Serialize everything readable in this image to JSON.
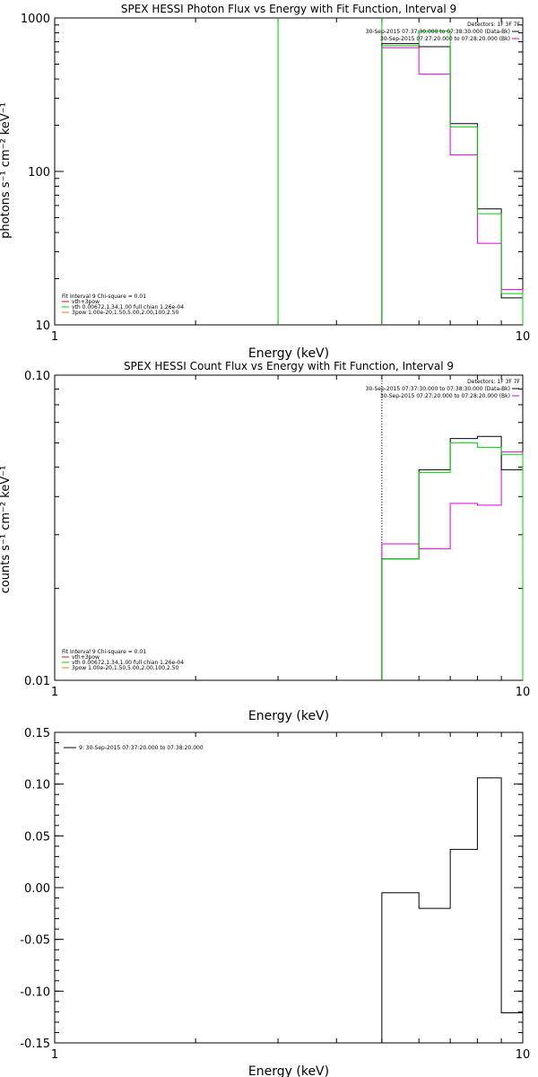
{
  "colors": {
    "black": "#000000",
    "green": "#00d000",
    "magenta": "#dd00dd",
    "orange": "#d08a00",
    "red": "#ff0000"
  },
  "chart_data": [
    {
      "type": "line",
      "id": "photon",
      "title": "SPEX HESSI Photon Flux vs Energy with Fit Function, Interval 9",
      "xlabel": "Energy (keV)",
      "ylabel": "photons s⁻¹ cm⁻² keV⁻¹",
      "xscale": "log",
      "yscale": "log",
      "xlim": [
        1,
        10
      ],
      "ylim": [
        10,
        1000
      ],
      "xticks": [
        {
          "v": 1,
          "label": "1"
        },
        {
          "v": 10,
          "label": "10"
        }
      ],
      "yticks": [
        {
          "v": 10,
          "label": "10"
        },
        {
          "v": 100,
          "label": "100"
        },
        {
          "v": 1000,
          "label": "1000"
        }
      ],
      "topright_legend": {
        "header": "Detectors: 1F 3F 7F",
        "entries": [
          {
            "text": "30-Sep-2015 07:37:30.000 to 07:38:30.000 (Data-Bk)",
            "color": "#000000"
          },
          {
            "text": "30-Sep-2015 07:27:20.000 to 07:28:20.000 (Bk)",
            "color": "#dd00dd"
          }
        ]
      },
      "bottomleft_legend": {
        "header": "Fit Interval 9   Chi-square = 0.01",
        "entries": [
          {
            "text": "vth+3pow",
            "color": "#ff0000"
          },
          {
            "text": "vth 0.00672,1.34,1.00  full chian 1.26e-04",
            "color": "#00d000"
          },
          {
            "text": "3pow 1.00e-20,1.50,5.00,2.00,100,2.50",
            "color": "#d08a00"
          }
        ]
      },
      "vlines": [
        {
          "x": 3.0,
          "color": "#00d000"
        },
        {
          "x": 5.0,
          "color": "#00d000"
        }
      ],
      "series": [
        {
          "color": "#000000",
          "edges": [
            5,
            6,
            7,
            8,
            9,
            10
          ],
          "values": [
            680,
            650,
            205,
            57,
            15
          ]
        },
        {
          "color": "#dd00dd",
          "edges": [
            5,
            6,
            7,
            8,
            9,
            10
          ],
          "values": [
            640,
            430,
            128,
            34,
            17
          ]
        },
        {
          "color": "#00d000",
          "edges": [
            5,
            6,
            7,
            8,
            9,
            10
          ],
          "values": [
            660,
            820,
            195,
            53,
            16
          ]
        }
      ]
    },
    {
      "type": "line",
      "id": "count",
      "title": "SPEX HESSI Count Flux vs Energy with Fit Function, Interval 9",
      "xlabel": "Energy (keV)",
      "ylabel": "counts s⁻¹ cm⁻² keV⁻¹",
      "xscale": "log",
      "yscale": "log",
      "xlim": [
        1,
        10
      ],
      "ylim": [
        0.01,
        0.1
      ],
      "xticks": [
        {
          "v": 1,
          "label": "1"
        },
        {
          "v": 10,
          "label": "10"
        }
      ],
      "yticks": [
        {
          "v": 0.01,
          "label": "0.01"
        },
        {
          "v": 0.1,
          "label": "0.10"
        }
      ],
      "topright_legend": {
        "header": "Detectors: 1F 3F 7F",
        "entries": [
          {
            "text": "30-Sep-2015 07:37:30.000 to 07:38:30.000 (Data-Bk)",
            "color": "#000000"
          },
          {
            "text": "30-Sep-2015 07:27:20.000 to 07:28:20.000 (Bk)",
            "color": "#dd00dd"
          }
        ]
      },
      "bottomleft_legend": {
        "header": "Fit Interval 9   Chi-square = 0.01",
        "entries": [
          {
            "text": "vth+3pow",
            "color": "#ff0000"
          },
          {
            "text": "vth 0.00672,1.34,1.00  full chian 1.26e-04",
            "color": "#00d000"
          },
          {
            "text": "3pow 1.00e-20,1.50,5.00,2.00,100,2.50",
            "color": "#d08a00"
          }
        ]
      },
      "vlines": [
        {
          "x": 5.0,
          "color": "#000000",
          "dashed": true
        }
      ],
      "series": [
        {
          "color": "#dd00dd",
          "edges": [
            5,
            6,
            7,
            8,
            9,
            10
          ],
          "values": [
            0.028,
            0.027,
            0.038,
            0.0375,
            0.056
          ]
        },
        {
          "color": "#000000",
          "edges": [
            5,
            6,
            7,
            8,
            9,
            10
          ],
          "values": [
            0.025,
            0.049,
            0.062,
            0.063,
            0.049
          ]
        },
        {
          "color": "#00d000",
          "edges": [
            5,
            6,
            7,
            8,
            9,
            10
          ],
          "values": [
            0.025,
            0.048,
            0.06,
            0.058,
            0.055
          ]
        }
      ]
    },
    {
      "type": "line",
      "id": "residual",
      "title": "",
      "xlabel": "Energy (keV)",
      "ylabel": "",
      "xscale": "log",
      "yscale": "linear",
      "xlim": [
        1,
        10
      ],
      "ylim": [
        -0.15,
        0.15
      ],
      "xticks": [
        {
          "v": 1,
          "label": "1"
        },
        {
          "v": 10,
          "label": "10"
        }
      ],
      "yticks": [
        {
          "v": 0.15,
          "label": "0.15"
        },
        {
          "v": 0.1,
          "label": "0.10"
        },
        {
          "v": 0.05,
          "label": "0.05"
        },
        {
          "v": 0.0,
          "label": "0.00"
        },
        {
          "v": -0.05,
          "label": "-0.05"
        },
        {
          "v": -0.1,
          "label": "-0.10"
        },
        {
          "v": -0.15,
          "label": "-0.15"
        }
      ],
      "topleft_legend": {
        "entries": [
          {
            "text": "9: 30-Sep-2015 07:37:20.000 to 07:38:20.000",
            "color": "#000000"
          }
        ]
      },
      "series": [
        {
          "color": "#000000",
          "edges": [
            5,
            6,
            7,
            8,
            9,
            10
          ],
          "values": [
            -0.005,
            -0.02,
            0.037,
            0.106,
            -0.121
          ],
          "drop_from": -0.15
        }
      ]
    }
  ]
}
